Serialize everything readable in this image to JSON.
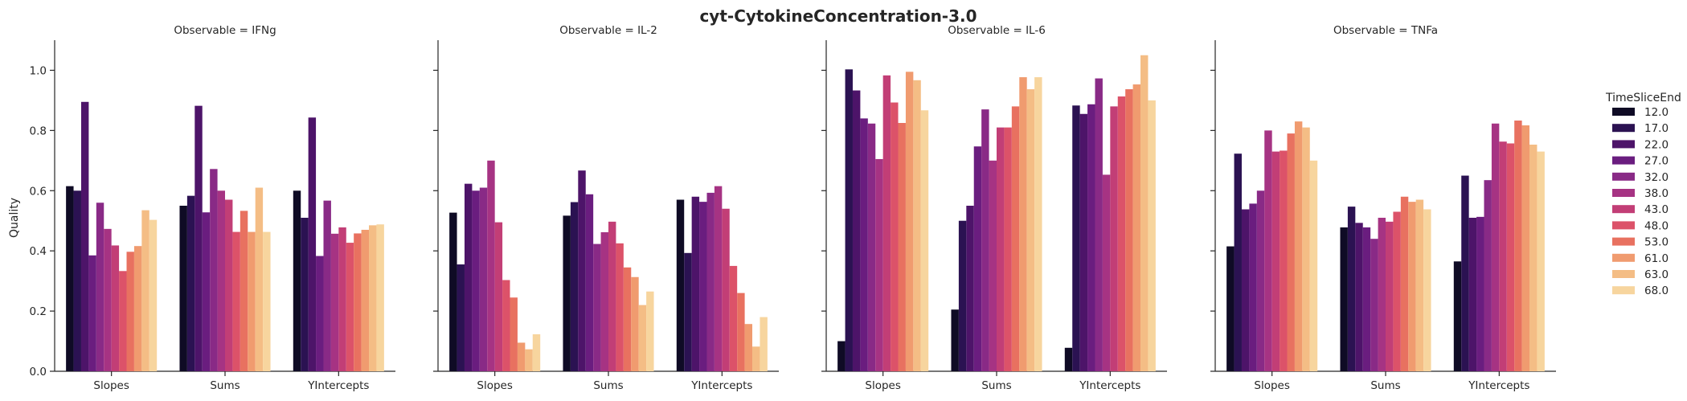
{
  "chart_data": {
    "type": "bar",
    "title": "cyt-CytokineConcentration-3.0",
    "ylabel": "Quality",
    "ylim": [
      0,
      1.1
    ],
    "yticks": [
      "0.0",
      "0.2",
      "0.4",
      "0.6",
      "0.8",
      "1.0"
    ],
    "categories": [
      "Slopes",
      "Sums",
      "YIntercepts"
    ],
    "legend": {
      "title": "TimeSliceEnd",
      "placement": "right",
      "entries": [
        "12.0",
        "17.0",
        "22.0",
        "27.0",
        "32.0",
        "38.0",
        "43.0",
        "48.0",
        "53.0",
        "61.0",
        "63.0",
        "68.0"
      ],
      "colors": [
        "#0f0b25",
        "#2b1252",
        "#4d1469",
        "#6a1d7f",
        "#892a86",
        "#a63383",
        "#c23e76",
        "#dc5269",
        "#e87160",
        "#f09b6f",
        "#f4bd85",
        "#f7d59e"
      ]
    },
    "facets": [
      {
        "title": "Observable = IFNg",
        "values": [
          [
            0.615,
            0.6,
            0.895,
            0.385,
            0.56,
            0.473,
            0.418,
            0.333,
            0.397,
            0.416,
            0.535,
            0.503
          ],
          [
            0.55,
            0.583,
            0.882,
            0.528,
            0.672,
            0.6,
            0.57,
            0.463,
            0.533,
            0.463,
            0.61,
            0.463
          ],
          [
            0.6,
            0.51,
            0.843,
            0.383,
            0.567,
            0.457,
            0.478,
            0.427,
            0.458,
            0.47,
            0.485,
            0.488
          ]
        ]
      },
      {
        "title": "Observable = IL-2",
        "values": [
          [
            0.527,
            0.355,
            0.623,
            0.6,
            0.61,
            0.7,
            0.495,
            0.303,
            0.245,
            0.095,
            0.073,
            0.123
          ],
          [
            0.517,
            0.562,
            0.667,
            0.588,
            0.423,
            0.462,
            0.497,
            0.425,
            0.345,
            0.313,
            0.22,
            0.265
          ],
          [
            0.57,
            0.393,
            0.58,
            0.563,
            0.593,
            0.615,
            0.54,
            0.35,
            0.26,
            0.157,
            0.082,
            0.18
          ]
        ]
      },
      {
        "title": "Observable = IL-6",
        "values": [
          [
            0.1,
            1.003,
            0.933,
            0.84,
            0.823,
            0.705,
            0.983,
            0.893,
            0.825,
            0.995,
            0.967,
            0.867
          ],
          [
            0.205,
            0.5,
            0.55,
            0.747,
            0.87,
            0.7,
            0.81,
            0.81,
            0.88,
            0.977,
            0.937,
            0.977
          ],
          [
            0.078,
            0.883,
            0.855,
            0.887,
            0.973,
            0.653,
            0.88,
            0.913,
            0.937,
            0.953,
            1.05,
            0.9
          ]
        ]
      },
      {
        "title": "Observable = TNFa",
        "values": [
          [
            0.415,
            0.723,
            0.538,
            0.557,
            0.6,
            0.8,
            0.73,
            0.733,
            0.79,
            0.83,
            0.81,
            0.7
          ],
          [
            0.478,
            0.547,
            0.493,
            0.478,
            0.44,
            0.51,
            0.497,
            0.53,
            0.58,
            0.563,
            0.57,
            0.538
          ],
          [
            0.365,
            0.65,
            0.51,
            0.513,
            0.635,
            0.823,
            0.763,
            0.757,
            0.833,
            0.817,
            0.753,
            0.73
          ]
        ]
      }
    ]
  }
}
